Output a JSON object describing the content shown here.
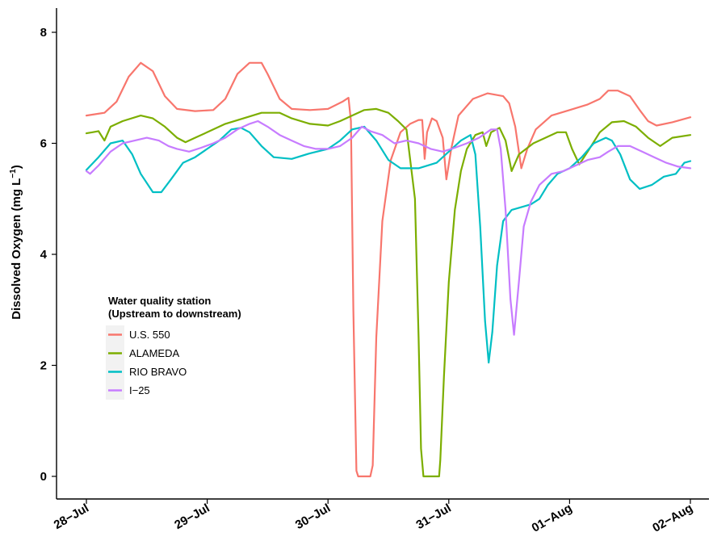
{
  "chart_data": {
    "type": "line",
    "title": "",
    "xlabel": "",
    "ylabel": "Dissolved Oxygen (mg L",
    "ylabel_sup": "−1",
    "ylabel_close": ")",
    "xlim": [
      0,
      5
    ],
    "ylim": [
      -0.3,
      8.3
    ],
    "x_ticks": [
      0,
      1,
      2,
      3,
      4,
      5
    ],
    "x_tick_labels": [
      "28−Jul",
      "29−Jul",
      "30−Jul",
      "31−Jul",
      "01−Aug",
      "02−Aug"
    ],
    "y_ticks": [
      0,
      2,
      4,
      6,
      8
    ],
    "y_tick_labels": [
      "0",
      "2",
      "4",
      "6",
      "8"
    ],
    "grid": false,
    "legend": {
      "title_line1": "Water quality station",
      "title_line2": "(Upstream to downstream)",
      "placement": "center-left"
    },
    "series": [
      {
        "name": "U.S. 550",
        "color": "#F8766D",
        "points": [
          [
            0.0,
            6.5
          ],
          [
            0.15,
            6.55
          ],
          [
            0.25,
            6.75
          ],
          [
            0.35,
            7.2
          ],
          [
            0.45,
            7.45
          ],
          [
            0.55,
            7.3
          ],
          [
            0.65,
            6.85
          ],
          [
            0.75,
            6.62
          ],
          [
            0.9,
            6.58
          ],
          [
            1.05,
            6.6
          ],
          [
            1.15,
            6.8
          ],
          [
            1.25,
            7.25
          ],
          [
            1.35,
            7.45
          ],
          [
            1.45,
            7.45
          ],
          [
            1.5,
            7.25
          ],
          [
            1.6,
            6.8
          ],
          [
            1.7,
            6.62
          ],
          [
            1.85,
            6.6
          ],
          [
            2.0,
            6.62
          ],
          [
            2.12,
            6.75
          ],
          [
            2.17,
            6.82
          ],
          [
            2.19,
            6.4
          ],
          [
            2.21,
            3.0
          ],
          [
            2.235,
            0.1
          ],
          [
            2.25,
            0.0
          ],
          [
            2.35,
            0.0
          ],
          [
            2.37,
            0.2
          ],
          [
            2.4,
            2.5
          ],
          [
            2.45,
            4.6
          ],
          [
            2.52,
            5.7
          ],
          [
            2.6,
            6.2
          ],
          [
            2.68,
            6.35
          ],
          [
            2.75,
            6.42
          ],
          [
            2.78,
            6.42
          ],
          [
            2.8,
            5.72
          ],
          [
            2.82,
            6.2
          ],
          [
            2.86,
            6.45
          ],
          [
            2.9,
            6.4
          ],
          [
            2.95,
            6.1
          ],
          [
            2.98,
            5.35
          ],
          [
            3.02,
            5.9
          ],
          [
            3.08,
            6.5
          ],
          [
            3.2,
            6.8
          ],
          [
            3.32,
            6.9
          ],
          [
            3.45,
            6.85
          ],
          [
            3.5,
            6.72
          ],
          [
            3.55,
            6.3
          ],
          [
            3.6,
            5.55
          ],
          [
            3.65,
            5.9
          ],
          [
            3.72,
            6.25
          ],
          [
            3.85,
            6.5
          ],
          [
            4.0,
            6.6
          ],
          [
            4.15,
            6.7
          ],
          [
            4.25,
            6.8
          ],
          [
            4.32,
            6.95
          ],
          [
            4.4,
            6.95
          ],
          [
            4.5,
            6.85
          ],
          [
            4.58,
            6.6
          ],
          [
            4.65,
            6.4
          ],
          [
            4.72,
            6.32
          ],
          [
            4.85,
            6.38
          ],
          [
            5.0,
            6.47
          ]
        ]
      },
      {
        "name": "ALAMEDA",
        "color": "#7CAE00",
        "points": [
          [
            0.0,
            6.18
          ],
          [
            0.05,
            6.2
          ],
          [
            0.1,
            6.22
          ],
          [
            0.15,
            6.05
          ],
          [
            0.2,
            6.3
          ],
          [
            0.3,
            6.4
          ],
          [
            0.45,
            6.5
          ],
          [
            0.55,
            6.45
          ],
          [
            0.65,
            6.3
          ],
          [
            0.75,
            6.1
          ],
          [
            0.82,
            6.02
          ],
          [
            0.9,
            6.1
          ],
          [
            1.0,
            6.2
          ],
          [
            1.15,
            6.35
          ],
          [
            1.3,
            6.45
          ],
          [
            1.45,
            6.55
          ],
          [
            1.6,
            6.55
          ],
          [
            1.7,
            6.45
          ],
          [
            1.85,
            6.35
          ],
          [
            2.0,
            6.32
          ],
          [
            2.1,
            6.4
          ],
          [
            2.2,
            6.5
          ],
          [
            2.3,
            6.6
          ],
          [
            2.4,
            6.62
          ],
          [
            2.5,
            6.55
          ],
          [
            2.58,
            6.4
          ],
          [
            2.65,
            6.25
          ],
          [
            2.72,
            5.0
          ],
          [
            2.75,
            2.5
          ],
          [
            2.77,
            0.5
          ],
          [
            2.79,
            0.0
          ],
          [
            2.92,
            0.0
          ],
          [
            2.93,
            0.3
          ],
          [
            2.96,
            1.8
          ],
          [
            3.0,
            3.5
          ],
          [
            3.05,
            4.8
          ],
          [
            3.1,
            5.5
          ],
          [
            3.15,
            5.9
          ],
          [
            3.22,
            6.15
          ],
          [
            3.28,
            6.2
          ],
          [
            3.31,
            5.95
          ],
          [
            3.35,
            6.2
          ],
          [
            3.42,
            6.28
          ],
          [
            3.47,
            6.05
          ],
          [
            3.52,
            5.5
          ],
          [
            3.58,
            5.8
          ],
          [
            3.7,
            6.0
          ],
          [
            3.8,
            6.1
          ],
          [
            3.9,
            6.2
          ],
          [
            3.97,
            6.2
          ],
          [
            4.02,
            5.9
          ],
          [
            4.08,
            5.62
          ],
          [
            4.15,
            5.85
          ],
          [
            4.25,
            6.2
          ],
          [
            4.35,
            6.38
          ],
          [
            4.45,
            6.4
          ],
          [
            4.55,
            6.3
          ],
          [
            4.65,
            6.1
          ],
          [
            4.75,
            5.95
          ],
          [
            4.85,
            6.1
          ],
          [
            5.0,
            6.15
          ]
        ]
      },
      {
        "name": "RIO BRAVO",
        "color": "#00BFC4",
        "points": [
          [
            0.0,
            5.52
          ],
          [
            0.1,
            5.75
          ],
          [
            0.2,
            6.0
          ],
          [
            0.3,
            6.05
          ],
          [
            0.38,
            5.8
          ],
          [
            0.45,
            5.45
          ],
          [
            0.55,
            5.12
          ],
          [
            0.62,
            5.12
          ],
          [
            0.7,
            5.35
          ],
          [
            0.8,
            5.65
          ],
          [
            0.9,
            5.75
          ],
          [
            1.0,
            5.9
          ],
          [
            1.1,
            6.05
          ],
          [
            1.2,
            6.25
          ],
          [
            1.28,
            6.28
          ],
          [
            1.35,
            6.2
          ],
          [
            1.45,
            5.95
          ],
          [
            1.55,
            5.75
          ],
          [
            1.7,
            5.72
          ],
          [
            1.85,
            5.82
          ],
          [
            2.0,
            5.9
          ],
          [
            2.1,
            6.05
          ],
          [
            2.2,
            6.25
          ],
          [
            2.3,
            6.3
          ],
          [
            2.4,
            6.05
          ],
          [
            2.5,
            5.7
          ],
          [
            2.6,
            5.55
          ],
          [
            2.75,
            5.55
          ],
          [
            2.9,
            5.65
          ],
          [
            3.0,
            5.85
          ],
          [
            3.1,
            6.05
          ],
          [
            3.18,
            6.15
          ],
          [
            3.22,
            5.8
          ],
          [
            3.26,
            4.5
          ],
          [
            3.3,
            2.8
          ],
          [
            3.33,
            2.05
          ],
          [
            3.36,
            2.6
          ],
          [
            3.4,
            3.8
          ],
          [
            3.45,
            4.6
          ],
          [
            3.52,
            4.8
          ],
          [
            3.6,
            4.85
          ],
          [
            3.68,
            4.9
          ],
          [
            3.75,
            5.0
          ],
          [
            3.82,
            5.25
          ],
          [
            3.9,
            5.45
          ],
          [
            4.0,
            5.55
          ],
          [
            4.1,
            5.75
          ],
          [
            4.2,
            6.0
          ],
          [
            4.3,
            6.1
          ],
          [
            4.35,
            6.05
          ],
          [
            4.42,
            5.8
          ],
          [
            4.5,
            5.35
          ],
          [
            4.58,
            5.18
          ],
          [
            4.68,
            5.25
          ],
          [
            4.78,
            5.4
          ],
          [
            4.88,
            5.45
          ],
          [
            4.95,
            5.65
          ],
          [
            5.0,
            5.68
          ]
        ]
      },
      {
        "name": "I−25",
        "color": "#C77CFF",
        "points": [
          [
            0.0,
            5.5
          ],
          [
            0.03,
            5.45
          ],
          [
            0.1,
            5.6
          ],
          [
            0.2,
            5.85
          ],
          [
            0.3,
            6.0
          ],
          [
            0.4,
            6.05
          ],
          [
            0.5,
            6.1
          ],
          [
            0.6,
            6.05
          ],
          [
            0.68,
            5.95
          ],
          [
            0.75,
            5.9
          ],
          [
            0.85,
            5.85
          ],
          [
            0.95,
            5.92
          ],
          [
            1.05,
            6.0
          ],
          [
            1.15,
            6.1
          ],
          [
            1.25,
            6.25
          ],
          [
            1.35,
            6.35
          ],
          [
            1.42,
            6.4
          ],
          [
            1.5,
            6.3
          ],
          [
            1.6,
            6.15
          ],
          [
            1.7,
            6.05
          ],
          [
            1.8,
            5.95
          ],
          [
            1.9,
            5.9
          ],
          [
            2.0,
            5.9
          ],
          [
            2.1,
            5.95
          ],
          [
            2.2,
            6.1
          ],
          [
            2.28,
            6.3
          ],
          [
            2.35,
            6.22
          ],
          [
            2.45,
            6.15
          ],
          [
            2.55,
            6.0
          ],
          [
            2.65,
            6.05
          ],
          [
            2.75,
            6.0
          ],
          [
            2.85,
            5.9
          ],
          [
            2.95,
            5.85
          ],
          [
            3.05,
            5.92
          ],
          [
            3.15,
            6.0
          ],
          [
            3.25,
            6.1
          ],
          [
            3.35,
            6.25
          ],
          [
            3.4,
            6.25
          ],
          [
            3.43,
            5.9
          ],
          [
            3.47,
            4.8
          ],
          [
            3.51,
            3.2
          ],
          [
            3.54,
            2.55
          ],
          [
            3.58,
            3.5
          ],
          [
            3.62,
            4.5
          ],
          [
            3.68,
            4.95
          ],
          [
            3.75,
            5.25
          ],
          [
            3.85,
            5.45
          ],
          [
            3.95,
            5.5
          ],
          [
            4.05,
            5.6
          ],
          [
            4.15,
            5.7
          ],
          [
            4.25,
            5.75
          ],
          [
            4.32,
            5.85
          ],
          [
            4.4,
            5.95
          ],
          [
            4.5,
            5.95
          ],
          [
            4.6,
            5.85
          ],
          [
            4.7,
            5.75
          ],
          [
            4.8,
            5.65
          ],
          [
            4.9,
            5.58
          ],
          [
            5.0,
            5.55
          ]
        ]
      }
    ]
  }
}
